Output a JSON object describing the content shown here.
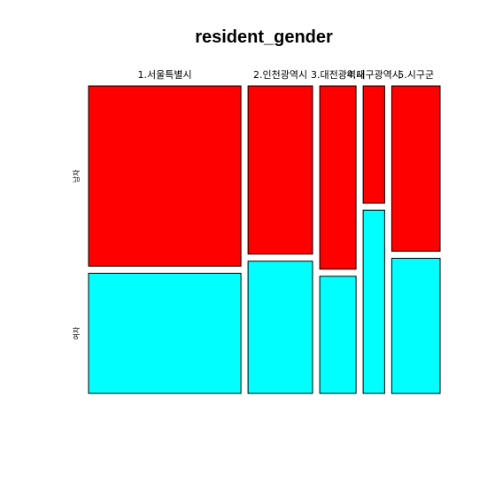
{
  "chart_data": {
    "type": "mosaic",
    "title": "resident_gender",
    "categories": [
      "1.서울특별시",
      "2.인천광역시",
      "3.대전광역시",
      "4.대구광역시",
      "5.시구군"
    ],
    "column_widths": [
      0.432,
      0.183,
      0.103,
      0.061,
      0.137
    ],
    "series": [
      {
        "name": "남자",
        "fractions": [
          0.6,
          0.56,
          0.61,
          0.39,
          0.55
        ]
      },
      {
        "name": "여자",
        "fractions": [
          0.4,
          0.44,
          0.39,
          0.61,
          0.45
        ]
      }
    ],
    "colors": {
      "남자": "#ff0000",
      "여자": "#00ffff"
    },
    "grid": false
  }
}
